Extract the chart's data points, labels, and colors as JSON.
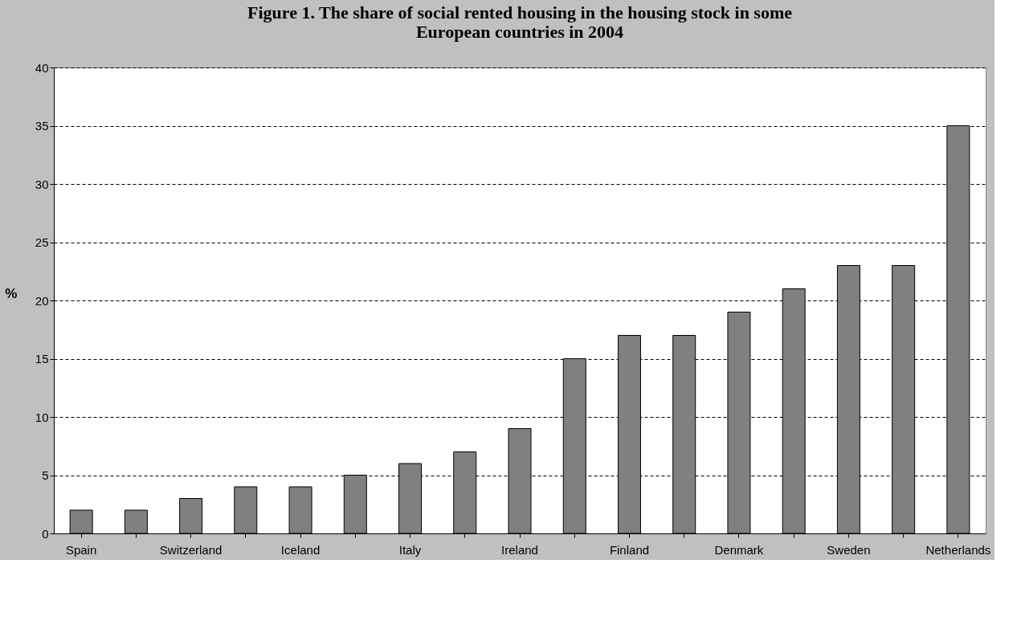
{
  "chart_data": {
    "type": "bar",
    "title": [
      "Figure 1. The share of social rented housing in the housing stock in some",
      "European countries in 2004"
    ],
    "ylabel": "%",
    "categories": [
      "Spain",
      null,
      "Switzerland",
      null,
      "Iceland",
      null,
      "Italy",
      null,
      "Ireland",
      null,
      "Finland",
      null,
      "Denmark",
      null,
      "Sweden",
      null,
      "Netherlands"
    ],
    "values": [
      2,
      2,
      3,
      4,
      4,
      5,
      6,
      7,
      9,
      15,
      17,
      17,
      19,
      21,
      23,
      23,
      35
    ],
    "color": "#808080",
    "ylim": [
      0,
      40
    ],
    "yticks": [
      0,
      5,
      10,
      15,
      20,
      25,
      30,
      35,
      40
    ],
    "grid": "y"
  }
}
